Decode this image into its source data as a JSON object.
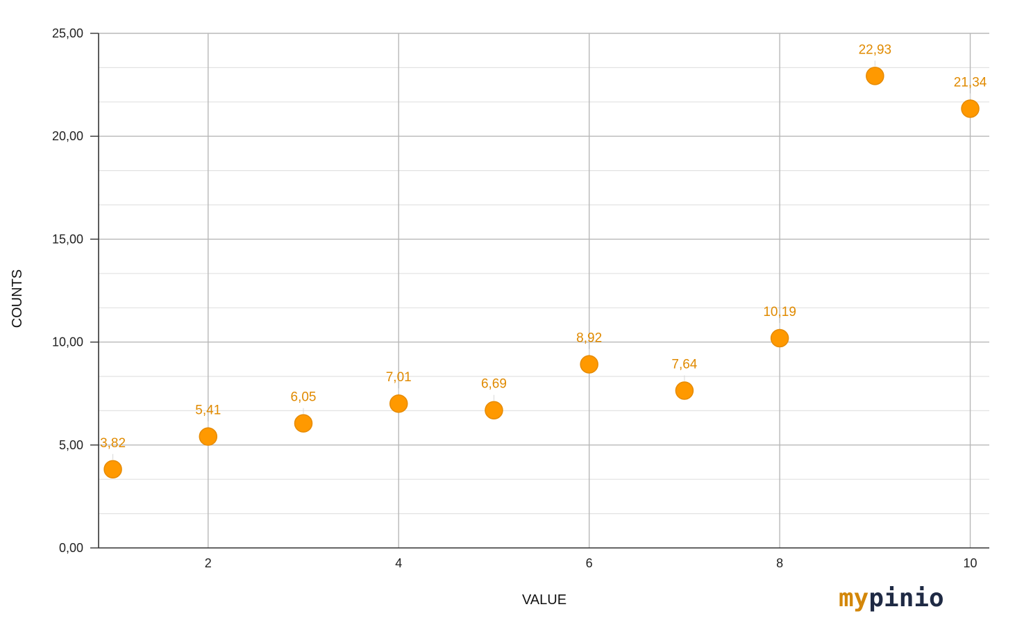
{
  "chart_data": {
    "type": "scatter",
    "x": [
      1,
      2,
      3,
      4,
      5,
      6,
      7,
      8,
      9,
      10
    ],
    "y": [
      3.82,
      5.41,
      6.05,
      7.01,
      6.69,
      8.92,
      7.64,
      10.19,
      22.93,
      21.34
    ],
    "point_labels": [
      "3,82",
      "5,41",
      "6,05",
      "7,01",
      "6,69",
      "8,92",
      "7,64",
      "10,19",
      "22,93",
      "21,34"
    ],
    "xlabel": "VALUE",
    "ylabel": "COUNTS",
    "xlim": [
      0.85,
      10.2
    ],
    "ylim": [
      0,
      25
    ],
    "x_ticks": [
      2,
      4,
      6,
      8,
      10
    ],
    "x_tick_labels": [
      "2",
      "4",
      "6",
      "8",
      "10"
    ],
    "y_ticks": [
      0,
      5,
      10,
      15,
      20,
      25
    ],
    "y_tick_labels": [
      "0,00",
      "5,00",
      "10,00",
      "15,00",
      "20,00",
      "25,00"
    ],
    "grid": true,
    "legend": "none",
    "colors": {
      "point_fill": "#FF9900",
      "point_stroke": "#E68A00",
      "label": "#E08A00",
      "major_grid": "#B8B8B8",
      "minor_grid": "#E2E2E2",
      "axis": "#333333"
    }
  },
  "branding": {
    "logo_part1": "my",
    "logo_part2": "pinio"
  }
}
